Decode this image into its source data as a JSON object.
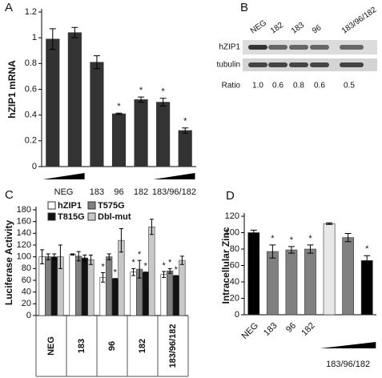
{
  "chart_data": [
    {
      "type": "bar",
      "panel": "A",
      "y_label": "hZIP1 mRNA",
      "categories": [
        "NEG",
        null,
        "183",
        "96",
        "182",
        "183/96/182",
        null
      ],
      "values": [
        0.99,
        1.04,
        0.81,
        0.41,
        0.52,
        0.5,
        0.28
      ],
      "errors": [
        0.08,
        0.04,
        0.05,
        0.005,
        0.02,
        0.03,
        0.02
      ],
      "significance": [
        null,
        null,
        null,
        "*",
        "*",
        "*",
        "*"
      ],
      "color": "#333333",
      "ylim": [
        0,
        1.2
      ],
      "yticks": [
        0,
        0.2,
        0.4,
        0.6,
        0.8,
        1,
        1.2
      ]
    },
    {
      "type": "grouped_bar",
      "panel": "C",
      "y_label": "Luciferase Activity",
      "categories": [
        "NEG",
        "183",
        "96",
        "182",
        "183/96/182"
      ],
      "series": [
        {
          "name": "hZIP1",
          "color": "#ffffff",
          "values": [
            100,
            104,
            65,
            74,
            70
          ],
          "errors": [
            12,
            1,
            8,
            6,
            5
          ],
          "significance": [
            null,
            null,
            "*",
            "*",
            "*"
          ]
        },
        {
          "name": "T575G",
          "color": "#808080",
          "values": [
            100,
            101,
            100,
            79,
            76
          ],
          "errors": [
            5,
            8,
            5,
            15,
            4
          ],
          "significance": [
            null,
            null,
            null,
            "*",
            "*"
          ]
        },
        {
          "name": "T815G",
          "color": "#111111",
          "values": [
            100,
            98,
            63,
            74,
            68
          ],
          "errors": [
            5,
            5,
            0,
            0,
            0
          ],
          "significance": [
            null,
            null,
            "*",
            "*",
            "*"
          ]
        },
        {
          "name": "Dbl-mut",
          "color": "#c8c8c8",
          "values": [
            100,
            95,
            128,
            151,
            94
          ],
          "errors": [
            20,
            8,
            20,
            13,
            7
          ],
          "significance": [
            null,
            null,
            null,
            null,
            null
          ]
        }
      ],
      "ylim": [
        0,
        180
      ],
      "yticks": [
        0,
        20,
        40,
        60,
        80,
        100,
        120,
        140,
        160,
        180
      ]
    },
    {
      "type": "bar",
      "panel": "D",
      "y_label": "Intracellular Zinc",
      "categories": [
        "NEG",
        "183",
        "96",
        "182",
        null,
        "183/96/182",
        null
      ],
      "values": [
        100,
        77,
        79,
        80,
        111,
        94,
        66
      ],
      "errors": [
        3,
        8,
        4,
        5,
        1,
        5,
        6
      ],
      "significance": [
        null,
        "*",
        "*",
        "*",
        null,
        null,
        "*"
      ],
      "colors": [
        "#000000",
        "#808080",
        "#808080",
        "#808080",
        "#e8e8e8",
        "#808080",
        "#000000"
      ],
      "ylim": [
        0,
        120
      ],
      "yticks": [
        0,
        20,
        40,
        60,
        80,
        100,
        120
      ]
    }
  ],
  "blot": {
    "panel": "B",
    "lanes": [
      "NEG",
      "182",
      "183",
      "96",
      "183/96/182"
    ],
    "rows": [
      "hZIP1",
      "tubulin"
    ],
    "ratio_label": "Ratio",
    "ratios": [
      "1.0",
      "0.6",
      "0.8",
      "0.6",
      "0.5"
    ]
  }
}
